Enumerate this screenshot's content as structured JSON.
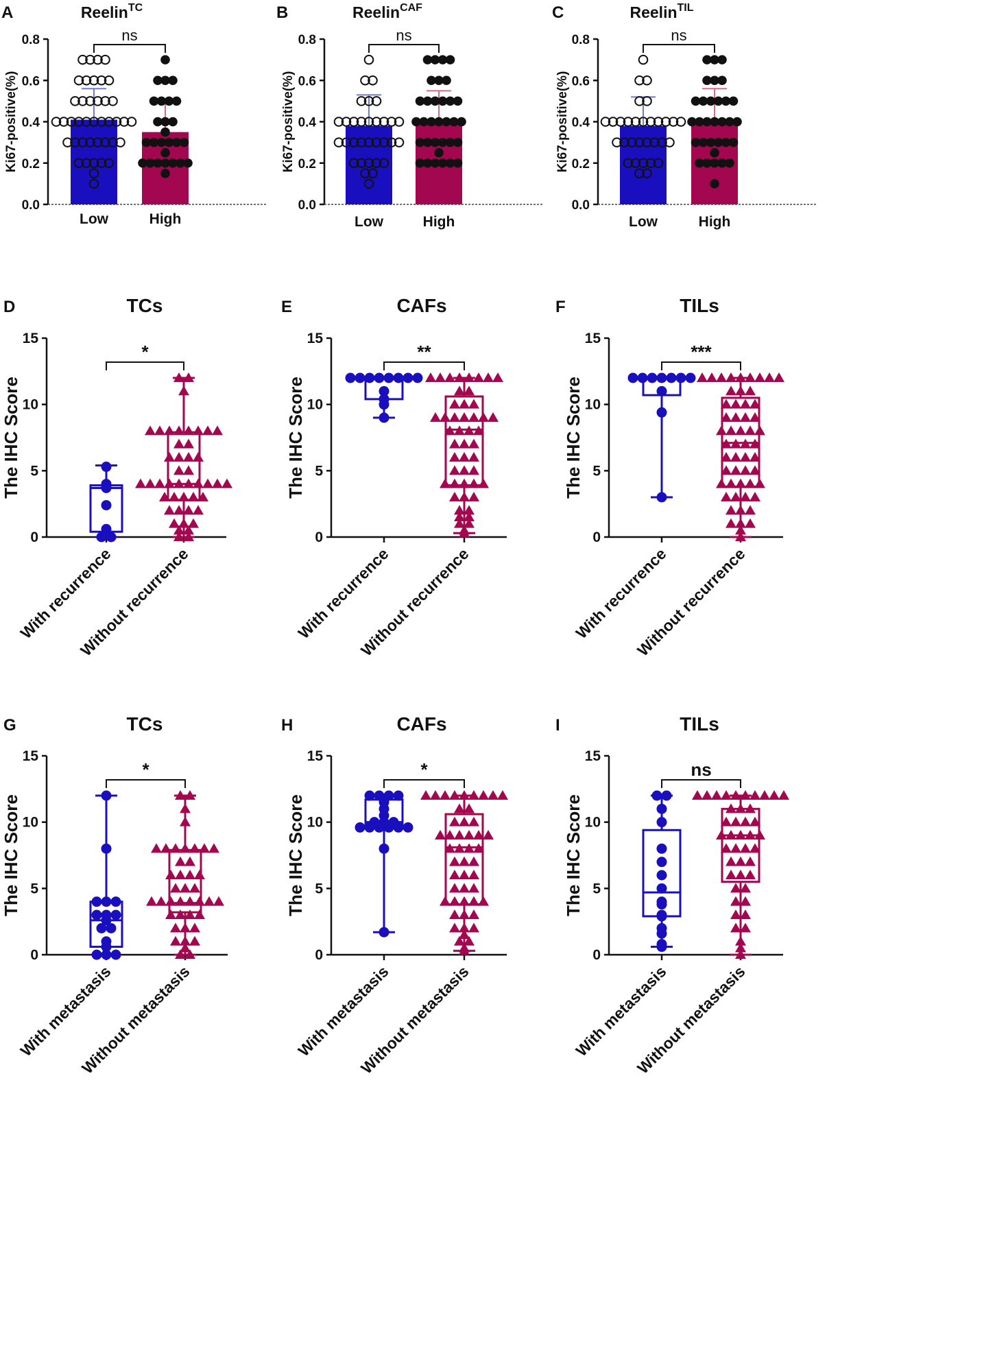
{
  "colors": {
    "low": "#1a0fbf",
    "high": "#a3074f",
    "lowErr": "#6f7bd6",
    "highErr": "#d86a8f",
    "axis": "#111111"
  },
  "chart_data": [
    {
      "letter": "A",
      "type": "bar",
      "title": "Reelin",
      "title_sup": "TC",
      "ylabel": "Ki67-positive(%)",
      "ylim": [
        0,
        0.8
      ],
      "yticks": [
        "0.0",
        "0.2",
        "0.4",
        "0.6",
        "0.8"
      ],
      "ytick_values": [
        0,
        0.2,
        0.4,
        0.6,
        0.8
      ],
      "categories": [
        "Low",
        "High"
      ],
      "sig": "ns",
      "series": [
        {
          "name": "Low",
          "mean": 0.41,
          "sd": 0.15,
          "marker": "open-circle",
          "points": [
            0.7,
            0.7,
            0.7,
            0.7,
            0.6,
            0.6,
            0.6,
            0.6,
            0.6,
            0.5,
            0.5,
            0.5,
            0.5,
            0.5,
            0.5,
            0.4,
            0.4,
            0.4,
            0.4,
            0.4,
            0.4,
            0.4,
            0.4,
            0.4,
            0.4,
            0.4,
            0.3,
            0.3,
            0.3,
            0.3,
            0.3,
            0.3,
            0.3,
            0.3,
            0.2,
            0.2,
            0.2,
            0.2,
            0.2,
            0.15,
            0.1
          ]
        },
        {
          "name": "High",
          "mean": 0.35,
          "sd": 0.15,
          "marker": "filled-circle",
          "points": [
            0.7,
            0.6,
            0.6,
            0.6,
            0.5,
            0.5,
            0.5,
            0.5,
            0.4,
            0.4,
            0.4,
            0.35,
            0.3,
            0.3,
            0.3,
            0.3,
            0.3,
            0.3,
            0.25,
            0.2,
            0.2,
            0.2,
            0.2,
            0.2,
            0.2,
            0.2,
            0.15
          ]
        }
      ]
    },
    {
      "letter": "B",
      "type": "bar",
      "title": "Reelin",
      "title_sup": "CAF",
      "ylabel": "Ki67-positive(%)",
      "ylim": [
        0,
        0.8
      ],
      "yticks": [
        "0.0",
        "0.2",
        "0.4",
        "0.6",
        "0.8"
      ],
      "ytick_values": [
        0,
        0.2,
        0.4,
        0.6,
        0.8
      ],
      "categories": [
        "Low",
        "High"
      ],
      "sig": "ns",
      "series": [
        {
          "name": "Low",
          "mean": 0.38,
          "sd": 0.15,
          "marker": "open-circle",
          "points": [
            0.7,
            0.6,
            0.6,
            0.5,
            0.5,
            0.5,
            0.4,
            0.4,
            0.4,
            0.4,
            0.4,
            0.4,
            0.4,
            0.4,
            0.4,
            0.3,
            0.3,
            0.3,
            0.3,
            0.3,
            0.3,
            0.3,
            0.3,
            0.3,
            0.2,
            0.2,
            0.2,
            0.2,
            0.2,
            0.15,
            0.15,
            0.1
          ]
        },
        {
          "name": "High",
          "mean": 0.4,
          "sd": 0.15,
          "marker": "filled-circle",
          "points": [
            0.7,
            0.7,
            0.7,
            0.7,
            0.6,
            0.6,
            0.6,
            0.5,
            0.5,
            0.5,
            0.5,
            0.5,
            0.5,
            0.4,
            0.4,
            0.4,
            0.4,
            0.4,
            0.4,
            0.4,
            0.3,
            0.3,
            0.3,
            0.3,
            0.3,
            0.3,
            0.25,
            0.2,
            0.2,
            0.2,
            0.2,
            0.2,
            0.2
          ]
        }
      ]
    },
    {
      "letter": "C",
      "type": "bar",
      "title": "Reelin",
      "title_sup": "TIL",
      "ylabel": "Ki67-positive(%)",
      "ylim": [
        0,
        0.8
      ],
      "yticks": [
        "0.0",
        "0.2",
        "0.4",
        "0.6",
        "0.8"
      ],
      "ytick_values": [
        0,
        0.2,
        0.4,
        0.6,
        0.8
      ],
      "categories": [
        "Low",
        "High"
      ],
      "sig": "ns",
      "series": [
        {
          "name": "Low",
          "mean": 0.38,
          "sd": 0.14,
          "marker": "open-circle",
          "points": [
            0.7,
            0.6,
            0.6,
            0.5,
            0.5,
            0.4,
            0.4,
            0.4,
            0.4,
            0.4,
            0.4,
            0.4,
            0.4,
            0.4,
            0.4,
            0.4,
            0.3,
            0.3,
            0.3,
            0.3,
            0.3,
            0.3,
            0.3,
            0.3,
            0.2,
            0.2,
            0.2,
            0.2,
            0.2,
            0.15,
            0.15
          ]
        },
        {
          "name": "High",
          "mean": 0.4,
          "sd": 0.16,
          "marker": "filled-circle",
          "points": [
            0.7,
            0.7,
            0.7,
            0.6,
            0.6,
            0.6,
            0.5,
            0.5,
            0.5,
            0.5,
            0.5,
            0.5,
            0.4,
            0.4,
            0.4,
            0.4,
            0.4,
            0.4,
            0.4,
            0.3,
            0.3,
            0.3,
            0.3,
            0.3,
            0.3,
            0.25,
            0.2,
            0.2,
            0.2,
            0.2,
            0.2,
            0.1
          ]
        }
      ]
    },
    {
      "letter": "D",
      "type": "box",
      "title": "TCs",
      "ylabel": "The IHC Score",
      "ylim": [
        0,
        15
      ],
      "yticks": [
        "0",
        "5",
        "10",
        "15"
      ],
      "ytick_values": [
        0,
        5,
        10,
        15
      ],
      "categories": [
        "With recurrence",
        "Without recurrence"
      ],
      "sig": "*",
      "series": [
        {
          "name": "With recurrence",
          "marker": "circle",
          "q1": 0.4,
          "median": 3.7,
          "q3": 3.9,
          "min": 0,
          "max": 5.4,
          "points": [
            5.3,
            4.0,
            3.9,
            3.8,
            3.7,
            2.4,
            0.6,
            0,
            0
          ]
        },
        {
          "name": "Without recurrence",
          "marker": "triangle",
          "q1": 2.8,
          "median": 4.0,
          "q3": 7.9,
          "min": 0,
          "max": 12,
          "points": [
            12,
            12,
            11,
            8,
            8,
            8,
            8,
            8,
            8,
            8,
            8,
            7,
            7,
            6,
            6,
            6,
            6,
            5,
            5,
            4,
            4,
            4,
            4,
            4,
            4,
            4,
            4,
            4,
            4,
            3,
            3,
            3,
            3,
            3,
            2,
            2,
            2,
            2,
            1,
            1,
            1,
            0.5,
            0.5,
            0,
            0
          ]
        }
      ]
    },
    {
      "letter": "E",
      "type": "box",
      "title": "CAFs",
      "ylabel": "The IHC Score",
      "ylim": [
        0,
        15
      ],
      "yticks": [
        "0",
        "5",
        "10",
        "15"
      ],
      "ytick_values": [
        0,
        5,
        10,
        15
      ],
      "categories": [
        "With recurrence",
        "Without recurrence"
      ],
      "sig": "**",
      "series": [
        {
          "name": "With recurrence",
          "marker": "circle",
          "q1": 10.4,
          "median": 12,
          "q3": 12,
          "min": 9,
          "max": 12,
          "points": [
            12,
            12,
            12,
            12,
            12,
            12,
            12,
            12,
            11,
            10.4,
            10,
            9
          ]
        },
        {
          "name": "Without recurrence",
          "marker": "triangle",
          "q1": 3.9,
          "median": 8.1,
          "q3": 10.6,
          "min": 0.3,
          "max": 12,
          "points": [
            12,
            12,
            12,
            12,
            12,
            12,
            12,
            12,
            11,
            11,
            10,
            10,
            10,
            9,
            9,
            9,
            9,
            9,
            9,
            9,
            8,
            8,
            8,
            8,
            7,
            7,
            7,
            6,
            6,
            6,
            5,
            5,
            5,
            4,
            4,
            4,
            4,
            4,
            3,
            3,
            3,
            2,
            2,
            1.5,
            1.5,
            1,
            1,
            0.5,
            0.3
          ]
        }
      ]
    },
    {
      "letter": "F",
      "type": "box",
      "title": "TILs",
      "ylabel": "The IHC Score",
      "ylim": [
        0,
        15
      ],
      "yticks": [
        "0",
        "5",
        "10",
        "15"
      ],
      "ytick_values": [
        0,
        5,
        10,
        15
      ],
      "categories": [
        "With recurrence",
        "Without recurrence"
      ],
      "sig": "***",
      "series": [
        {
          "name": "With recurrence",
          "marker": "circle",
          "q1": 10.7,
          "median": 12,
          "q3": 12,
          "min": 3,
          "max": 12,
          "points": [
            12,
            12,
            12,
            12,
            12,
            12,
            12,
            11,
            9.4,
            3
          ]
        },
        {
          "name": "Without recurrence",
          "marker": "triangle",
          "q1": 3.8,
          "median": 7.1,
          "q3": 10.5,
          "min": 0,
          "max": 12,
          "points": [
            12,
            12,
            12,
            12,
            12,
            12,
            12,
            12,
            12,
            11,
            11,
            11,
            10,
            10,
            10,
            10,
            9,
            9,
            9,
            9,
            8,
            8,
            8,
            8,
            8,
            7,
            7,
            7,
            7,
            6,
            6,
            6,
            6,
            5,
            5,
            5,
            5,
            4,
            4,
            4,
            4,
            4,
            3,
            3,
            3,
            3,
            2,
            2,
            2,
            1,
            1,
            1,
            0.5,
            0
          ]
        }
      ]
    },
    {
      "letter": "G",
      "type": "box",
      "title": "TCs",
      "ylabel": "The IHC Score",
      "ylim": [
        0,
        15
      ],
      "yticks": [
        "0",
        "5",
        "10",
        "15"
      ],
      "ytick_values": [
        0,
        5,
        10,
        15
      ],
      "categories": [
        "With metastasis",
        "Without metastasis"
      ],
      "sig": "*",
      "series": [
        {
          "name": "With metastasis",
          "marker": "circle",
          "q1": 0.6,
          "median": 2.6,
          "q3": 4.0,
          "min": 0,
          "max": 12,
          "points": [
            12,
            8,
            4,
            4,
            4,
            3,
            3,
            3,
            2.6,
            2,
            2,
            1,
            0.6,
            0,
            0,
            0
          ]
        },
        {
          "name": "Without metastasis",
          "marker": "triangle",
          "q1": 3.2,
          "median": 3.9,
          "q3": 7.9,
          "min": 0,
          "max": 12,
          "points": [
            12,
            12,
            11,
            10,
            8,
            8,
            8,
            8,
            8,
            8,
            8,
            7,
            7,
            6,
            6,
            6,
            6,
            5,
            5,
            5,
            4,
            4,
            4,
            4,
            4,
            4,
            4,
            4,
            3,
            3,
            3,
            3,
            2,
            2,
            2,
            1,
            1,
            1,
            0.5,
            0,
            0
          ]
        }
      ]
    },
    {
      "letter": "H",
      "type": "box",
      "title": "CAFs",
      "ylabel": "The IHC Score",
      "ylim": [
        0,
        15
      ],
      "yticks": [
        "0",
        "5",
        "10",
        "15"
      ],
      "ytick_values": [
        0,
        5,
        10,
        15
      ],
      "categories": [
        "With metastasis",
        "Without metastasis"
      ],
      "sig": "*",
      "series": [
        {
          "name": "With metastasis",
          "marker": "circle",
          "q1": 9.6,
          "median": 10.0,
          "q3": 11.7,
          "min": 1.7,
          "max": 12,
          "points": [
            12,
            12,
            12,
            12,
            11.5,
            11,
            10.5,
            10,
            10,
            10,
            9.6,
            9.6,
            9.6,
            9.6,
            9.6,
            9.6,
            8,
            1.7
          ]
        },
        {
          "name": "Without metastasis",
          "marker": "triangle",
          "q1": 3.8,
          "median": 8.1,
          "q3": 10.6,
          "min": 0.3,
          "max": 12,
          "points": [
            12,
            12,
            12,
            12,
            12,
            12,
            12,
            12,
            12,
            11,
            11,
            10,
            10,
            10,
            9,
            9,
            9,
            9,
            9,
            9,
            8,
            8,
            8,
            8,
            7,
            7,
            7,
            6,
            6,
            6,
            5,
            5,
            5,
            4,
            4,
            4,
            4,
            4,
            3,
            3,
            3,
            2,
            2,
            2,
            1.5,
            1,
            1,
            0.5,
            0.3
          ]
        }
      ]
    },
    {
      "letter": "I",
      "type": "box",
      "title": "TILs",
      "ylabel": "The IHC Score",
      "ylim": [
        0,
        15
      ],
      "yticks": [
        "0",
        "5",
        "10",
        "15"
      ],
      "ytick_values": [
        0,
        5,
        10,
        15
      ],
      "categories": [
        "With metastasis",
        "Without metastasis"
      ],
      "sig": "ns",
      "series": [
        {
          "name": "With metastasis",
          "marker": "circle",
          "q1": 2.9,
          "median": 4.7,
          "q3": 9.4,
          "min": 0.6,
          "max": 12,
          "points": [
            12,
            12,
            11,
            10,
            8,
            7,
            6,
            5,
            4,
            3.8,
            3,
            2.9,
            2,
            1.6,
            0.8,
            0.6
          ]
        },
        {
          "name": "Without metastasis",
          "marker": "triangle",
          "q1": 5.5,
          "median": 9.0,
          "q3": 11.0,
          "min": 0,
          "max": 12,
          "points": [
            12,
            12,
            12,
            12,
            12,
            12,
            12,
            12,
            12,
            12,
            11,
            11,
            11,
            10,
            10,
            10,
            10,
            9,
            9,
            9,
            9,
            9,
            8,
            8,
            8,
            8,
            7,
            7,
            7,
            6,
            6,
            6,
            5,
            5,
            4,
            4,
            3,
            3,
            2,
            2,
            1,
            0.5,
            0
          ]
        }
      ]
    }
  ]
}
